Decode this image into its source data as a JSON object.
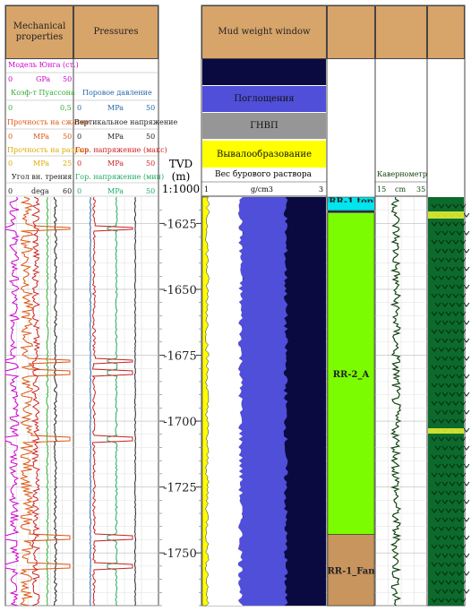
{
  "tracks": {
    "mech": {
      "title": "Mechanical properties",
      "curves": [
        {
          "name": "Модель Юнга (ст.)",
          "unit": "GPa",
          "min": "0",
          "max": "50",
          "color": "#cc00cc"
        },
        {
          "name": "Коэф-т Пуассона",
          "unit": "",
          "min": "0",
          "max": "0,5",
          "color": "#33aa33"
        },
        {
          "name": "Прочность на сжатие",
          "unit": "MPa",
          "min": "0",
          "max": "50",
          "color": "#dd5511"
        },
        {
          "name": "Прочность на разрыв",
          "unit": "MPa",
          "min": "0",
          "max": "25",
          "color": "#ddaa00"
        },
        {
          "name": "Угол вн. трения",
          "unit": "dega",
          "min": "0",
          "max": "60",
          "color": "#222222"
        }
      ]
    },
    "press": {
      "title": "Pressures",
      "curves": [
        {
          "name": "Поровое давление",
          "unit": "MPa",
          "min": "0",
          "max": "50",
          "color": "#2266aa"
        },
        {
          "name": "Вертикальное напряжение",
          "unit": "MPa",
          "min": "0",
          "max": "50",
          "color": "#222222"
        },
        {
          "name": "Гор. напряжение (макс)",
          "unit": "MPa",
          "min": "0",
          "max": "50",
          "color": "#cc2222"
        },
        {
          "name": "Гор. напряжение (мин)",
          "unit": "MPa",
          "min": "0",
          "max": "50",
          "color": "#22aa66"
        }
      ]
    },
    "tvd": {
      "title": "TVD",
      "unit": "(m)",
      "scale": "1:1000"
    },
    "mud": {
      "title": "Mud weight window",
      "legend": [
        {
          "label": "",
          "color": "#0a0a40"
        },
        {
          "label": "Поглощения",
          "color": "#4f4fd9"
        },
        {
          "label": "ГНВП",
          "color": "#969696"
        },
        {
          "label": "Вывалообразование",
          "color": "#ffff00"
        }
      ],
      "curve": {
        "name": "Вес бурового раствора",
        "unit": "g/cm3",
        "min": "1",
        "max": "3"
      }
    },
    "cal": {
      "name": "Кавернометр",
      "unit": "cm",
      "min": "15",
      "max": "35",
      "color": "#114411"
    }
  },
  "colors": {
    "header": "#d7a46a",
    "yellow": "#ffff00",
    "green_zone": "#7cfc00",
    "fan": "#c8955e",
    "cyan": "#00e5ee",
    "lith_bg": "#0c6a2c",
    "lithology": "#1a7a3a"
  },
  "chart_data": {
    "type": "line",
    "depth_unit": "m",
    "depth_range": [
      1615,
      1770
    ],
    "depth_ticks": [
      1625,
      1650,
      1675,
      1700,
      1725,
      1750
    ],
    "tops": [
      {
        "name": "RR-1 top",
        "top": 1615,
        "base": 1620
      },
      {
        "name": "RR-2_A",
        "top": 1621,
        "base": 1743
      },
      {
        "name": "RR-1_Fan",
        "top": 1743,
        "base": 1770
      }
    ],
    "mud_weight_window": {
      "losses_min_gcm3": 2.35,
      "kick_max_gcm3": 1.05,
      "breakout_max_gcm3": 1.1
    },
    "caliper_mean_cm": 23
  }
}
